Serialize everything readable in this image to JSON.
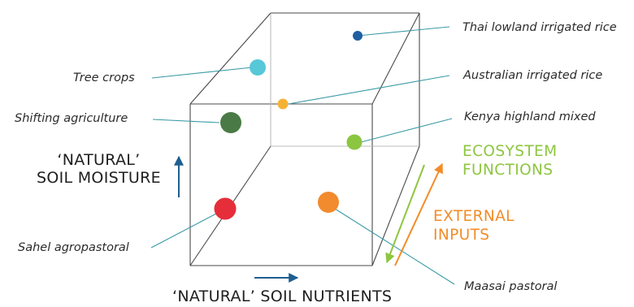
{
  "colors": {
    "leader": "#3a9aa6",
    "axis_arrow": "#1f5f8f",
    "ecosystem": "#8dc63f",
    "external": "#f28c28"
  },
  "points": [
    {
      "name": "thai-lowland-irrigated-rice",
      "label": "Thai lowland irrigated rice",
      "color": "#1f5fa0"
    },
    {
      "name": "tree-crops",
      "label": "Tree crops",
      "color": "#56c8d8"
    },
    {
      "name": "australian-irrigated-rice",
      "label": "Australian irrigated  rice",
      "color": "#f5b335"
    },
    {
      "name": "shifting-agriculture",
      "label": "Shifting agriculture",
      "color": "#4a7a46"
    },
    {
      "name": "kenya-highland-mixed",
      "label": "Kenya highland mixed",
      "color": "#8bc541"
    },
    {
      "name": "sahel-agropastoral",
      "label": "Sahel agropastoral",
      "color": "#e62e3a"
    },
    {
      "name": "maasai-pastoral",
      "label": "Maasai pastoral",
      "color": "#f28a2e"
    }
  ],
  "axes": {
    "moisture": [
      "‘NATURAL’",
      "SOIL MOISTURE"
    ],
    "nutrients": "‘NATURAL’ SOIL NUTRIENTS"
  },
  "ecosystem_functions": [
    "ECOSYSTEM",
    "FUNCTIONS"
  ],
  "external_inputs": [
    "EXTERNAL",
    "INPUTS"
  ]
}
